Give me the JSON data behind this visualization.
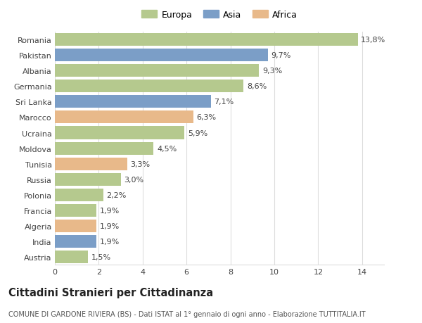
{
  "countries": [
    "Romania",
    "Pakistan",
    "Albania",
    "Germania",
    "Sri Lanka",
    "Marocco",
    "Ucraina",
    "Moldova",
    "Tunisia",
    "Russia",
    "Polonia",
    "Francia",
    "Algeria",
    "India",
    "Austria"
  ],
  "values": [
    13.8,
    9.7,
    9.3,
    8.6,
    7.1,
    6.3,
    5.9,
    4.5,
    3.3,
    3.0,
    2.2,
    1.9,
    1.9,
    1.9,
    1.5
  ],
  "labels": [
    "13,8%",
    "9,7%",
    "9,3%",
    "8,6%",
    "7,1%",
    "6,3%",
    "5,9%",
    "4,5%",
    "3,3%",
    "3,0%",
    "2,2%",
    "1,9%",
    "1,9%",
    "1,9%",
    "1,5%"
  ],
  "continents": [
    "Europa",
    "Asia",
    "Europa",
    "Europa",
    "Asia",
    "Africa",
    "Europa",
    "Europa",
    "Africa",
    "Europa",
    "Europa",
    "Europa",
    "Africa",
    "Asia",
    "Europa"
  ],
  "colors": {
    "Europa": "#b5c98e",
    "Asia": "#7b9ec7",
    "Africa": "#e8b98a"
  },
  "legend_order": [
    "Europa",
    "Asia",
    "Africa"
  ],
  "title": "Cittadini Stranieri per Cittadinanza",
  "subtitle": "COMUNE DI GARDONE RIVIERA (BS) - Dati ISTAT al 1° gennaio di ogni anno - Elaborazione TUTTITALIA.IT",
  "xlim": [
    0,
    15
  ],
  "xticks": [
    0,
    2,
    4,
    6,
    8,
    10,
    12,
    14
  ],
  "background_color": "#ffffff",
  "grid_color": "#dddddd",
  "bar_height": 0.82,
  "title_fontsize": 10.5,
  "subtitle_fontsize": 7.0,
  "label_fontsize": 8,
  "tick_fontsize": 8,
  "legend_fontsize": 9
}
